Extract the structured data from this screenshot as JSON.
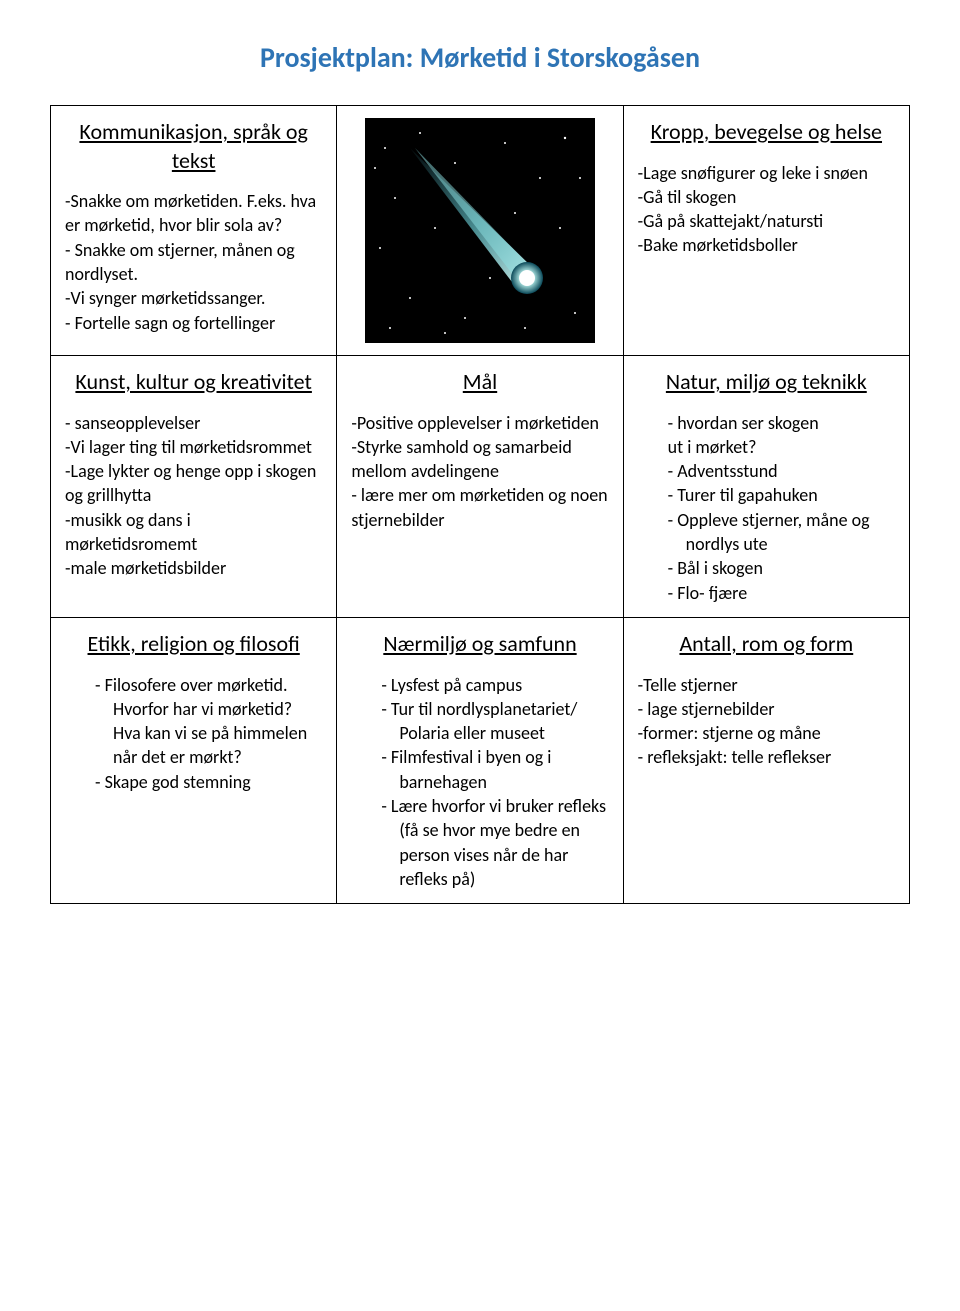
{
  "title": "Prosjektplan: Mørketid i Storskogåsen",
  "title_color": "#2e74b5",
  "title_fontsize": 28,
  "heading_fontsize": 22,
  "body_fontsize": 18,
  "border_color": "#000000",
  "background_color": "#ffffff",
  "comet_image": {
    "bg_color": "#000000",
    "comet_color_light": "#b8f0ec",
    "comet_color_mid": "#4bb8c8",
    "comet_color_dark": "#0a4858",
    "star_color": "#ffffff"
  },
  "cells": {
    "r1c1": {
      "heading": "Kommunikasjon, språk og tekst",
      "body": "-Snakke om mørketiden. F.eks. hva er mørketid, hvor blir sola av?\n- Snakke om stjerner, månen og nordlyset.\n -Vi synger mørketidssanger.\n- Fortelle sagn og fortellinger"
    },
    "r1c3": {
      "heading": "Kropp, bevegelse og helse",
      "body": "-Lage snøfigurer og leke i snøen\n-Gå til skogen\n-Gå på skattejakt/natursti\n-Bake mørketidsboller"
    },
    "r2c1": {
      "heading": "Kunst, kultur og kreativitet",
      "body": "- sanseopplevelser\n-Vi lager ting til mørketidsrommet\n-Lage lykter og henge opp i skogen og grillhytta\n-musikk og dans i mørketidsromemt\n-male mørketidsbilder"
    },
    "r2c2": {
      "heading": "Mål",
      "body": "-Positive opplevelser i mørketiden\n-Styrke samhold og samarbeid mellom avdelingene\n- lære mer om mørketiden og noen stjernebilder"
    },
    "r2c3": {
      "heading": "Natur, miljø og teknikk",
      "items": [
        {
          "text": "hvordan ser skogen",
          "dash": true
        },
        {
          "text": "ut i mørket?",
          "outdent": true
        },
        {
          "text": "Adventsstund",
          "dash": true
        },
        {
          "text": "Turer til gapahuken",
          "dash": true
        },
        {
          "text": "Oppleve stjerner, måne og nordlys ute",
          "dash": true
        },
        {
          "text": "Bål i skogen",
          "dash": true
        },
        {
          "text": "Flo- fjære",
          "dash": true
        }
      ]
    },
    "r3c1": {
      "heading": "Etikk, religion og filosofi",
      "items": [
        {
          "text": "Filosofere over mørketid. Hvorfor har vi mørketid? Hva kan vi se på himmelen når det er mørkt?",
          "dash": true
        },
        {
          "text": "Skape god stemning",
          "dash": true
        }
      ]
    },
    "r3c2": {
      "heading": "Nærmiljø og samfunn",
      "items": [
        {
          "text": "Lysfest på campus",
          "dash": true
        },
        {
          "text": "Tur til nordlysplanetariet/ Polaria eller museet",
          "dash": true
        },
        {
          "text": "Filmfestival i byen og i barnehagen",
          "dash": true
        },
        {
          "text": "Lære hvorfor vi bruker refleks (få se hvor mye bedre en person vises når de har refleks på)",
          "dash": true
        }
      ]
    },
    "r3c3": {
      "heading": "Antall, rom og form",
      "body": "-Telle stjerner\n- lage stjernebilder\n-former: stjerne og måne\n- refleksjakt: telle reflekser"
    }
  }
}
